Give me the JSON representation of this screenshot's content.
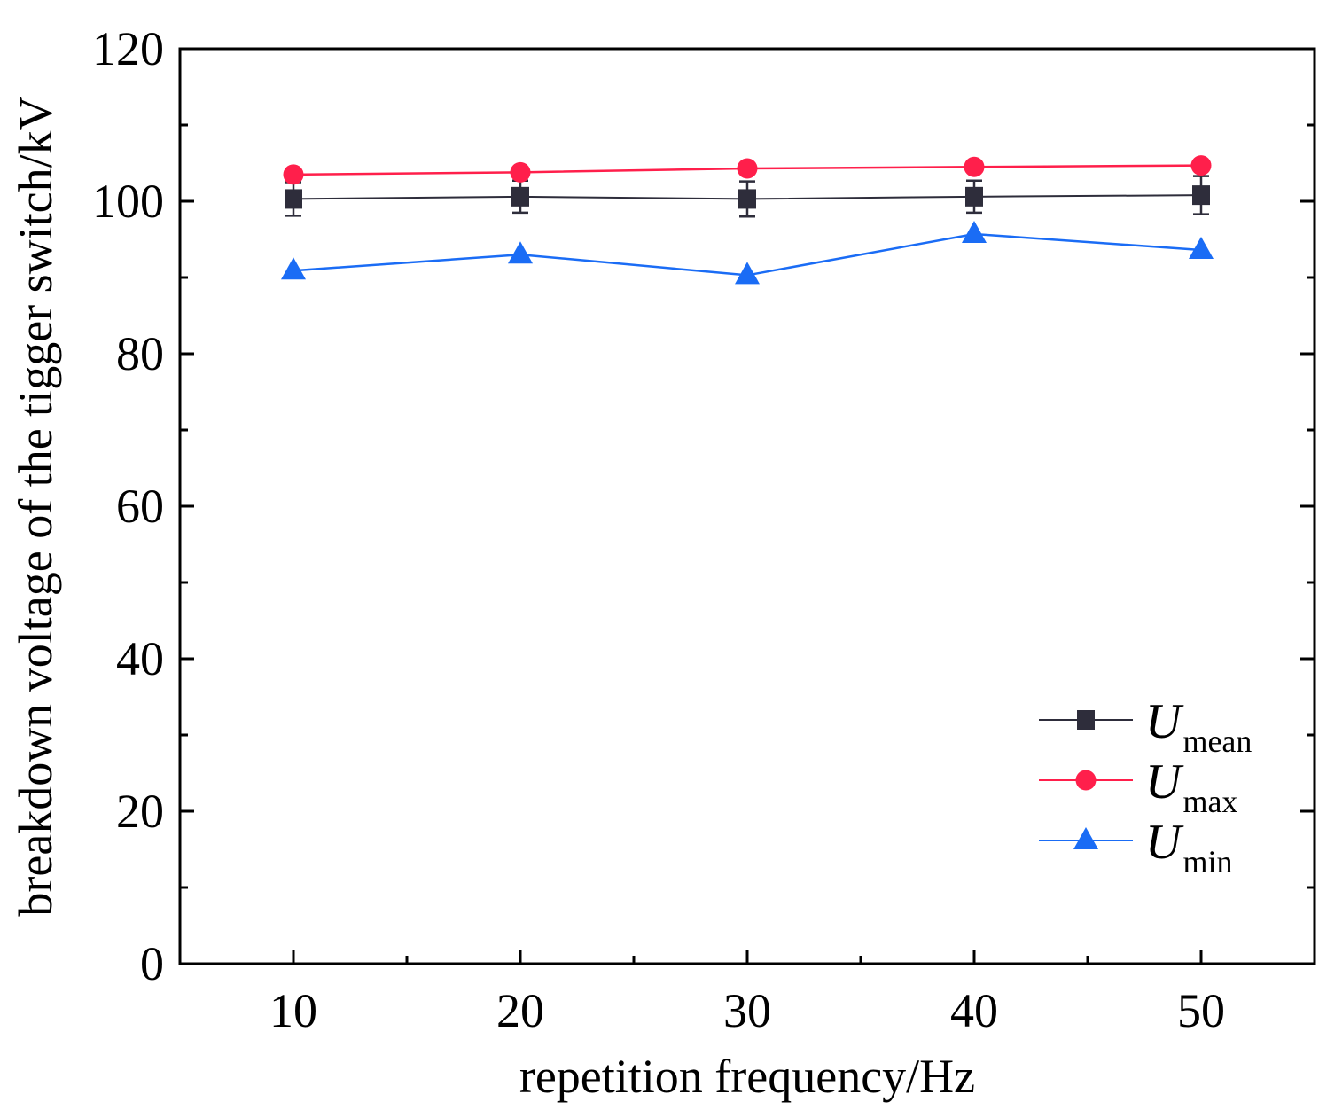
{
  "chart_data": {
    "type": "line",
    "title": "",
    "xlabel": "repetition frequency/Hz",
    "ylabel": "breakdown voltage of the tigger switch/kV",
    "xlim": [
      5,
      55
    ],
    "ylim": [
      0,
      120
    ],
    "xticks": [
      10,
      20,
      30,
      40,
      50
    ],
    "yticks": [
      0,
      20,
      40,
      60,
      80,
      100,
      120
    ],
    "x": [
      10,
      20,
      30,
      40,
      50
    ],
    "legend_position": "bottom-right",
    "grid": false,
    "series": [
      {
        "name": "U",
        "sub": "mean",
        "marker": "square",
        "color": "#2e2d3b",
        "values": [
          100.3,
          100.6,
          100.3,
          100.6,
          100.8
        ],
        "errors": [
          2.2,
          2.1,
          2.3,
          2.1,
          2.5
        ]
      },
      {
        "name": "U",
        "sub": "max",
        "marker": "circle",
        "color": "#ff1f4b",
        "values": [
          103.5,
          103.8,
          104.3,
          104.5,
          104.7
        ]
      },
      {
        "name": "U",
        "sub": "min",
        "marker": "triangle",
        "color": "#1a6cf5",
        "values": [
          90.9,
          93.0,
          90.3,
          95.7,
          93.6
        ]
      }
    ]
  }
}
